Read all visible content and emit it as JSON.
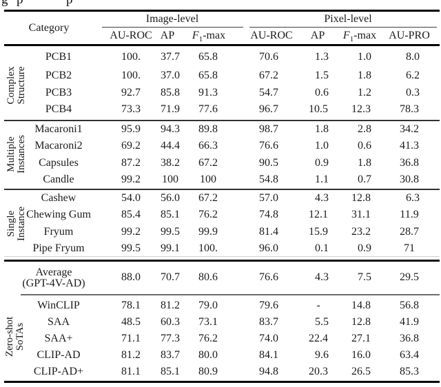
{
  "caption_fragment": {
    "letters": [
      "g",
      "p",
      "p"
    ]
  },
  "table": {
    "header": {
      "category": "Category",
      "image_level": "Image-level",
      "pixel_level": "Pixel-level",
      "image_columns": [
        "AU-ROC",
        "AP",
        "F1-max"
      ],
      "pixel_columns": [
        "AU-ROC",
        "AP",
        "F1-max",
        "AU-PRO"
      ]
    },
    "groups": [
      {
        "label_lines": [
          "Complex",
          "Structure"
        ],
        "rows": [
          {
            "category": "PCB1",
            "values": [
              "100.",
              "37.7",
              "65.8",
              "70.6",
              "1.3",
              "1.0",
              "8.0"
            ]
          },
          {
            "category": "PCB2",
            "values": [
              "100.",
              "37.0",
              "65.8",
              "67.2",
              "1.5",
              "1.8",
              "6.2"
            ]
          },
          {
            "category": "PCB3",
            "values": [
              "92.7",
              "85.8",
              "91.3",
              "54.7",
              "0.6",
              "1.2",
              "0.3"
            ]
          },
          {
            "category": "PCB4",
            "values": [
              "73.3",
              "71.9",
              "77.6",
              "96.7",
              "10.5",
              "12.3",
              "78.3"
            ]
          }
        ]
      },
      {
        "label_lines": [
          "Multiple",
          "Instances"
        ],
        "rows": [
          {
            "category": "Macaroni1",
            "values": [
              "95.9",
              "94.3",
              "89.8",
              "98.7",
              "1.8",
              "2.8",
              "34.2"
            ]
          },
          {
            "category": "Macaroni2",
            "values": [
              "69.2",
              "44.4",
              "66.3",
              "76.6",
              "1.0",
              "0.6",
              "41.3"
            ]
          },
          {
            "category": "Capsules",
            "values": [
              "87.2",
              "38.2",
              "67.2",
              "90.5",
              "0.9",
              "1.8",
              "36.8"
            ]
          },
          {
            "category": "Candle",
            "values": [
              "99.2",
              "100",
              "100",
              "54.8",
              "1.1",
              "0.7",
              "30.8"
            ]
          }
        ]
      },
      {
        "label_lines": [
          "Single",
          "Instance"
        ],
        "rows": [
          {
            "category": "Cashew",
            "values": [
              "54.0",
              "56.0",
              "67.2",
              "57.0",
              "4.3",
              "12.8",
              "6.3"
            ]
          },
          {
            "category": "Chewing Gum",
            "values": [
              "85.4",
              "85.1",
              "76.2",
              "74.8",
              "12.1",
              "31.1",
              "11.9"
            ]
          },
          {
            "category": "Fryum",
            "values": [
              "99.2",
              "99.5",
              "99.9",
              "81.4",
              "15.9",
              "23.2",
              "28.7"
            ]
          },
          {
            "category": "Pipe Fryum",
            "values": [
              "99.5",
              "99.1",
              "100.",
              "96.0",
              "0.1",
              "0.9",
              "71"
            ]
          }
        ]
      }
    ],
    "average_row": {
      "label_lines": [
        "Average",
        "(GPT-4V-AD)"
      ],
      "values": [
        "88.0",
        "70.7",
        "80.6",
        "76.6",
        "4.3",
        "7.5",
        "29.5"
      ]
    },
    "sota_group": {
      "label_lines": [
        "Zero-shot",
        "SoTAs"
      ],
      "rows": [
        {
          "category": "WinCLIP",
          "values": [
            "78.1",
            "81.2",
            "79.0",
            "79.6",
            "-",
            "14.8",
            "56.8"
          ]
        },
        {
          "category": "SAA",
          "values": [
            "48.5",
            "60.3",
            "73.1",
            "83.7",
            "5.5",
            "12.8",
            "41.9"
          ]
        },
        {
          "category": "SAA+",
          "values": [
            "71.1",
            "77.3",
            "76.2",
            "74.0",
            "22.4",
            "27.1",
            "36.8"
          ]
        },
        {
          "category": "CLIP-AD",
          "values": [
            "81.2",
            "83.7",
            "80.0",
            "84.1",
            "9.6",
            "16.0",
            "63.4"
          ]
        },
        {
          "category": "CLIP-AD+",
          "values": [
            "81.1",
            "85.1",
            "80.9",
            "94.8",
            "20.3",
            "26.5",
            "85.3"
          ]
        }
      ]
    }
  },
  "colors": {
    "background": "#ffffff",
    "text": "#1b1b1b",
    "heavy_rule": "#000000",
    "light_rule": "#555555"
  }
}
